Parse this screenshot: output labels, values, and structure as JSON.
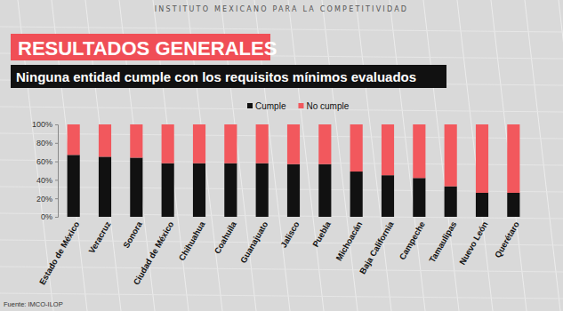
{
  "chart_data": {
    "type": "bar",
    "stacked": true,
    "header": "INSTITUTO MEXICANO PARA LA COMPETITIVIDAD",
    "title": "RESULTADOS GENERALES",
    "subtitle": "Ninguna entidad cumple con los requisitos mínimos evaluados",
    "source": "Fuente: IMCO-ILOP",
    "categories": [
      "Estado de México",
      "Veracruz",
      "Sonora",
      "Ciudad de México",
      "Chihuahua",
      "Coahuila",
      "Guanajuato",
      "Jalisco",
      "Puebla",
      "Michoacán",
      "Baja California",
      "Campeche",
      "Tamaulipas",
      "Nuevo León",
      "Querétaro"
    ],
    "series": [
      {
        "name": "Cumple",
        "color": "#111111",
        "values": [
          67,
          65,
          64,
          58,
          58,
          58,
          58,
          57,
          57,
          49,
          45,
          42,
          33,
          26,
          26
        ]
      },
      {
        "name": "No cumple",
        "color": "#f2585d",
        "values": [
          33,
          35,
          36,
          42,
          42,
          42,
          42,
          43,
          43,
          51,
          55,
          58,
          67,
          74,
          74
        ]
      }
    ],
    "ylim": [
      0,
      100
    ],
    "yticks": [
      {
        "value": 0,
        "label": "0%"
      },
      {
        "value": 20,
        "label": "20%"
      },
      {
        "value": 40,
        "label": "40%"
      },
      {
        "value": 60,
        "label": "60%"
      },
      {
        "value": 80,
        "label": "80%"
      },
      {
        "value": 100,
        "label": "100%"
      }
    ],
    "grid": false,
    "legend": "top"
  }
}
